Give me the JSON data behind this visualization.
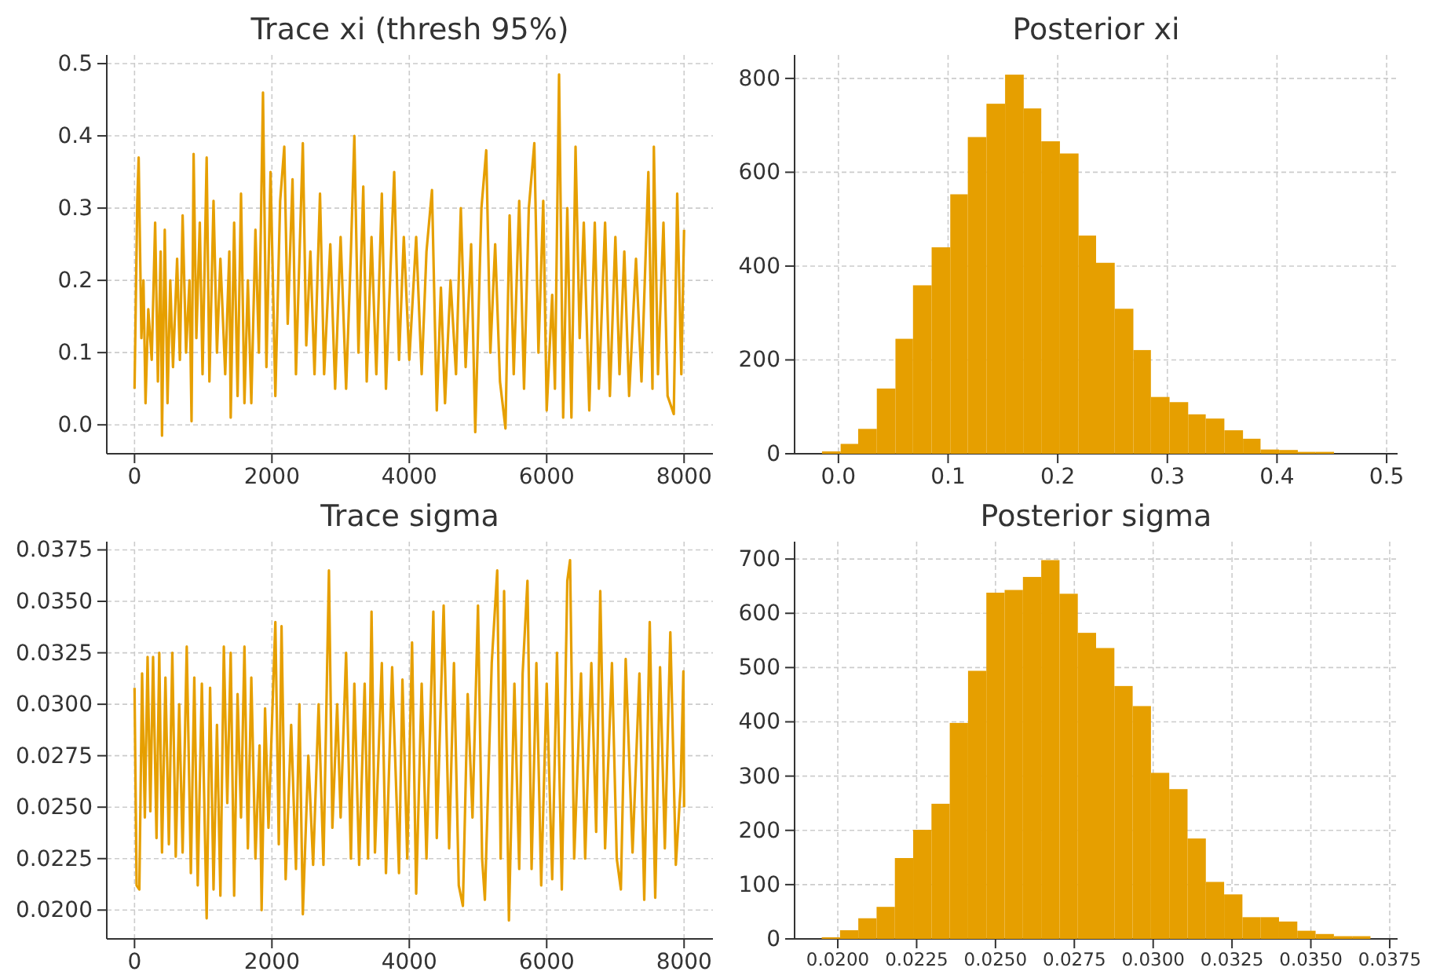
{
  "chart_data": [
    {
      "type": "line",
      "title": "Trace xi (thresh 95%)",
      "xlim": [
        -404,
        8420
      ],
      "xticks": [
        0,
        2000,
        4000,
        6000,
        8000
      ],
      "ylim": [
        -0.04,
        0.512
      ],
      "yticks": [
        {
          "value": 0,
          "label": "0.0"
        },
        0.1,
        0.2,
        0.3,
        0.4,
        0.5
      ],
      "grid": true,
      "series": [
        {
          "color": "#e69f00",
          "x": [
            0,
            40,
            60,
            100,
            130,
            160,
            200,
            250,
            300,
            340,
            380,
            400,
            440,
            480,
            520,
            560,
            620,
            660,
            700,
            750,
            800,
            830,
            860,
            900,
            950,
            990,
            1050,
            1090,
            1150,
            1200,
            1250,
            1320,
            1380,
            1400,
            1450,
            1500,
            1550,
            1600,
            1650,
            1700,
            1760,
            1810,
            1870,
            1920,
            1980,
            2050,
            2120,
            2180,
            2230,
            2300,
            2350,
            2450,
            2500,
            2560,
            2620,
            2700,
            2760,
            2850,
            2920,
            3000,
            3080,
            3150,
            3200,
            3260,
            3330,
            3380,
            3450,
            3520,
            3600,
            3660,
            3780,
            3850,
            3920,
            4000,
            4100,
            4180,
            4250,
            4330,
            4400,
            4460,
            4520,
            4600,
            4680,
            4750,
            4820,
            4900,
            4960,
            5050,
            5120,
            5180,
            5250,
            5320,
            5400,
            5460,
            5520,
            5600,
            5670,
            5740,
            5820,
            5880,
            5950,
            6000,
            6080,
            6120,
            6180,
            6240,
            6300,
            6360,
            6420,
            6480,
            6540,
            6620,
            6700,
            6760,
            6850,
            6920,
            7000,
            7060,
            7130,
            7200,
            7300,
            7380,
            7480,
            7540,
            7560,
            7620,
            7700,
            7760,
            7850,
            7900,
            7960,
            8000
          ],
          "values": [
            0.05,
            0.31,
            0.37,
            0.12,
            0.2,
            0.03,
            0.16,
            0.09,
            0.28,
            0.06,
            0.24,
            -0.015,
            0.27,
            0.03,
            0.2,
            0.08,
            0.23,
            0.09,
            0.29,
            0.1,
            0.2,
            0.005,
            0.375,
            0.12,
            0.28,
            0.07,
            0.37,
            0.06,
            0.31,
            0.1,
            0.23,
            0.07,
            0.24,
            0.01,
            0.28,
            0.04,
            0.32,
            0.03,
            0.2,
            0.03,
            0.27,
            0.1,
            0.46,
            0.08,
            0.35,
            0.04,
            0.31,
            0.385,
            0.14,
            0.34,
            0.07,
            0.39,
            0.11,
            0.24,
            0.07,
            0.32,
            0.07,
            0.25,
            0.05,
            0.26,
            0.05,
            0.24,
            0.4,
            0.1,
            0.33,
            0.06,
            0.26,
            0.07,
            0.32,
            0.05,
            0.35,
            0.09,
            0.26,
            0.09,
            0.26,
            0.07,
            0.24,
            0.325,
            0.02,
            0.19,
            0.03,
            0.2,
            0.07,
            0.3,
            0.08,
            0.25,
            -0.01,
            0.3,
            0.38,
            0.1,
            0.25,
            0.06,
            -0.005,
            0.29,
            0.07,
            0.31,
            0.05,
            0.3,
            0.39,
            0.1,
            0.31,
            0.02,
            0.18,
            0.05,
            0.485,
            0.01,
            0.3,
            0.01,
            0.385,
            0.12,
            0.28,
            0.02,
            0.28,
            0.05,
            0.28,
            0.04,
            0.26,
            0.07,
            0.24,
            0.04,
            0.23,
            0.06,
            0.35,
            0.05,
            0.385,
            0.07,
            0.28,
            0.04,
            0.015,
            0.32,
            0.07,
            0.27
          ]
        }
      ]
    },
    {
      "type": "histogram",
      "title": "Posterior xi",
      "color": "#e69f00",
      "xlim": [
        -0.04,
        0.51
      ],
      "xticks": [
        {
          "value": 0,
          "label": "0.0"
        },
        0.1,
        0.2,
        0.3,
        0.4,
        0.5
      ],
      "ylim": [
        0,
        850
      ],
      "yticks": [
        0,
        200,
        400,
        600,
        800
      ],
      "grid": true,
      "bins": [
        -0.015,
        0.002,
        0.018,
        0.035,
        0.052,
        0.068,
        0.085,
        0.102,
        0.118,
        0.135,
        0.152,
        0.169,
        0.185,
        0.202,
        0.219,
        0.235,
        0.252,
        0.269,
        0.285,
        0.302,
        0.319,
        0.335,
        0.352,
        0.369,
        0.385,
        0.402,
        0.419,
        0.435,
        0.452
      ],
      "values": [
        5,
        21,
        53,
        139,
        245,
        359,
        440,
        553,
        675,
        746,
        808,
        736,
        666,
        640,
        465,
        407,
        309,
        221,
        121,
        110,
        84,
        75,
        50,
        32,
        9,
        8,
        4,
        4
      ]
    },
    {
      "type": "line",
      "title": "Trace sigma",
      "xlim": [
        -404,
        8420
      ],
      "xticks": [
        0,
        2000,
        4000,
        6000,
        8000
      ],
      "ylim": [
        0.0186,
        0.0379
      ],
      "yticks": [
        {
          "value": 0.02,
          "label": "0.0200"
        },
        0.0225,
        {
          "value": 0.025,
          "label": "0.0250"
        },
        0.0275,
        {
          "value": 0.03,
          "label": "0.0300"
        },
        0.0325,
        {
          "value": 0.035,
          "label": "0.0350"
        },
        0.0375
      ],
      "grid": true,
      "series": [
        {
          "color": "#e69f00",
          "x": [
            0,
            30,
            70,
            110,
            150,
            190,
            230,
            270,
            320,
            360,
            400,
            450,
            500,
            550,
            600,
            650,
            700,
            760,
            820,
            870,
            920,
            980,
            1050,
            1100,
            1150,
            1200,
            1250,
            1300,
            1350,
            1400,
            1450,
            1500,
            1550,
            1600,
            1650,
            1700,
            1760,
            1820,
            1850,
            1900,
            1950,
            2050,
            2100,
            2140,
            2200,
            2280,
            2350,
            2400,
            2450,
            2530,
            2600,
            2680,
            2750,
            2830,
            2880,
            2950,
            3000,
            3080,
            3150,
            3200,
            3270,
            3350,
            3400,
            3450,
            3500,
            3600,
            3660,
            3750,
            3850,
            3900,
            3970,
            4040,
            4100,
            4180,
            4250,
            4350,
            4400,
            4500,
            4580,
            4650,
            4720,
            4780,
            4850,
            4920,
            5000,
            5060,
            5100,
            5200,
            5280,
            5330,
            5380,
            5450,
            5530,
            5600,
            5650,
            5720,
            5780,
            5850,
            5920,
            6000,
            6080,
            6150,
            6220,
            6300,
            6340,
            6400,
            6500,
            6560,
            6650,
            6720,
            6780,
            6850,
            6950,
            7020,
            7080,
            7150,
            7250,
            7350,
            7420,
            7500,
            7580,
            7650,
            7720,
            7800,
            7880,
            7950,
            7990,
            8000
          ],
          "values": [
            0.0308,
            0.0212,
            0.021,
            0.0315,
            0.0245,
            0.0323,
            0.0248,
            0.0323,
            0.0235,
            0.0325,
            0.0228,
            0.0313,
            0.0232,
            0.0325,
            0.0226,
            0.03,
            0.0228,
            0.0328,
            0.0218,
            0.0313,
            0.0212,
            0.031,
            0.0196,
            0.0308,
            0.021,
            0.029,
            0.0207,
            0.0328,
            0.0252,
            0.0325,
            0.0207,
            0.0305,
            0.0245,
            0.0328,
            0.023,
            0.0313,
            0.0225,
            0.028,
            0.02,
            0.0298,
            0.024,
            0.034,
            0.0232,
            0.0338,
            0.0215,
            0.029,
            0.022,
            0.03,
            0.0198,
            0.0275,
            0.0222,
            0.03,
            0.0222,
            0.0365,
            0.024,
            0.03,
            0.0245,
            0.0325,
            0.0225,
            0.031,
            0.0222,
            0.031,
            0.0225,
            0.0345,
            0.0228,
            0.032,
            0.0218,
            0.0318,
            0.0218,
            0.0312,
            0.0225,
            0.033,
            0.0208,
            0.031,
            0.0225,
            0.0345,
            0.0235,
            0.0348,
            0.023,
            0.032,
            0.0212,
            0.0202,
            0.0305,
            0.0245,
            0.0348,
            0.0225,
            0.0205,
            0.032,
            0.0365,
            0.0225,
            0.0355,
            0.0195,
            0.031,
            0.022,
            0.0315,
            0.036,
            0.022,
            0.032,
            0.0212,
            0.031,
            0.0215,
            0.0325,
            0.021,
            0.036,
            0.037,
            0.0225,
            0.0315,
            0.0225,
            0.032,
            0.0238,
            0.0355,
            0.023,
            0.032,
            0.0225,
            0.021,
            0.0322,
            0.0228,
            0.0315,
            0.0205,
            0.034,
            0.0206,
            0.0318,
            0.023,
            0.0335,
            0.0222,
            0.026,
            0.0316,
            0.025
          ]
        }
      ]
    },
    {
      "type": "histogram",
      "title": "Posterior sigma",
      "color": "#e69f00",
      "xlim": [
        0.01863,
        0.03775
      ],
      "xticks": [
        {
          "value": 0.02,
          "label": "0.0200"
        },
        0.0225,
        {
          "value": 0.025,
          "label": "0.0250"
        },
        0.0275,
        {
          "value": 0.03,
          "label": "0.0300"
        },
        0.0325,
        {
          "value": 0.035,
          "label": "0.0350"
        },
        0.0375
      ],
      "ylim": [
        0,
        732
      ],
      "yticks": [
        0,
        100,
        200,
        300,
        400,
        500,
        600,
        700
      ],
      "grid": true,
      "bins": [
        0.01949,
        0.02007,
        0.02065,
        0.02123,
        0.02181,
        0.02239,
        0.02297,
        0.02355,
        0.02413,
        0.02471,
        0.02529,
        0.02587,
        0.02645,
        0.02703,
        0.02761,
        0.02819,
        0.02877,
        0.02935,
        0.02993,
        0.03051,
        0.03109,
        0.03167,
        0.03225,
        0.03283,
        0.03341,
        0.03399,
        0.03457,
        0.03515,
        0.03573,
        0.03631,
        0.03689
      ],
      "values": [
        3,
        16,
        38,
        59,
        149,
        201,
        249,
        398,
        494,
        638,
        643,
        667,
        698,
        636,
        564,
        536,
        466,
        429,
        306,
        276,
        185,
        105,
        82,
        40,
        40,
        32,
        15,
        9,
        5,
        5
      ]
    }
  ]
}
